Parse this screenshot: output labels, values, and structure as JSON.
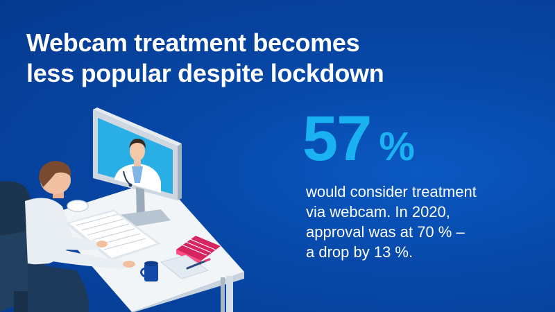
{
  "headline": {
    "line1": "Webcam treatment becomes",
    "line2": "less popular despite lockdown"
  },
  "stat": {
    "number": "57",
    "unit": "%"
  },
  "description": {
    "line1": "would consider treatment",
    "line2": "via webcam. In 2020,",
    "line3": "approval was at 70 % –",
    "line4": "a drop by 13 %."
  },
  "colors": {
    "background": "#0747a6",
    "accent": "#1ab2f0",
    "text": "#ffffff"
  },
  "icons": [
    "doctor-on-screen",
    "person-at-desk",
    "keyboard",
    "mouse",
    "mug",
    "notebook",
    "pen"
  ]
}
